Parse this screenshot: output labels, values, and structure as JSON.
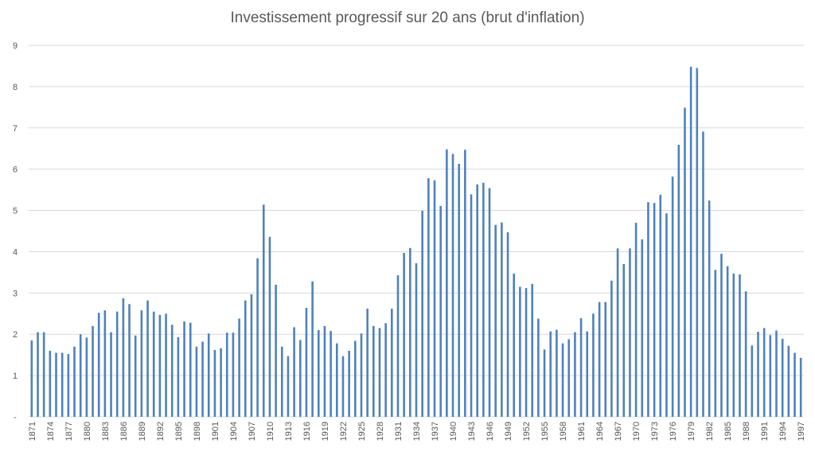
{
  "chart_data": {
    "type": "bar",
    "title": "Investissement progressif sur 20 ans (brut d'inflation)",
    "xlabel": "",
    "ylabel": "",
    "ylim": [
      0,
      9
    ],
    "yticks": [
      "-",
      "1",
      "2",
      "3",
      "4",
      "5",
      "6",
      "7",
      "8",
      "9"
    ],
    "grid": true,
    "legend": "none",
    "bar_color": "#4F81BD",
    "x_start": 1871,
    "x_end": 1997,
    "x_label_step": 3,
    "x_tick_labels": [
      "1871",
      "1874",
      "1877",
      "1880",
      "1883",
      "1886",
      "1889",
      "1892",
      "1895",
      "1898",
      "1901",
      "1904",
      "1907",
      "1910",
      "1913",
      "1916",
      "1919",
      "1922",
      "1925",
      "1928",
      "1931",
      "1934",
      "1937",
      "1940",
      "1943",
      "1946",
      "1949",
      "1952",
      "1955",
      "1958",
      "1961",
      "1964",
      "1967",
      "1970",
      "1973",
      "1976",
      "1979",
      "1982",
      "1985",
      "1988",
      "1991",
      "1994",
      "1997"
    ],
    "values": [
      1.85,
      2.05,
      2.05,
      1.6,
      1.55,
      1.55,
      1.52,
      1.7,
      2.0,
      1.92,
      2.2,
      2.52,
      2.58,
      2.05,
      2.55,
      2.87,
      2.73,
      1.97,
      2.58,
      2.82,
      2.55,
      2.47,
      2.5,
      2.23,
      1.93,
      2.31,
      2.28,
      1.7,
      1.82,
      2.02,
      1.62,
      1.66,
      2.04,
      2.04,
      2.38,
      2.82,
      2.97,
      3.84,
      5.14,
      4.36,
      3.2,
      1.7,
      1.47,
      2.17,
      1.86,
      2.64,
      3.28,
      2.1,
      2.2,
      2.08,
      1.78,
      1.47,
      1.6,
      1.84,
      2.02,
      2.62,
      2.2,
      2.15,
      2.27,
      2.62,
      3.43,
      3.97,
      4.09,
      3.72,
      4.99,
      5.78,
      5.73,
      5.11,
      6.48,
      6.37,
      6.13,
      6.47,
      5.39,
      5.63,
      5.67,
      5.54,
      4.65,
      4.71,
      4.47,
      3.47,
      3.15,
      3.12,
      3.22,
      2.38,
      1.63,
      2.07,
      2.11,
      1.78,
      1.88,
      2.05,
      2.39,
      2.07,
      2.5,
      2.78,
      2.78,
      3.3,
      4.08,
      3.7,
      4.08,
      4.7,
      4.3,
      5.2,
      5.18,
      5.38,
      4.93,
      5.82,
      6.59,
      7.49,
      8.48,
      8.45,
      6.91,
      5.24,
      3.56,
      3.95,
      3.65,
      3.47,
      3.45,
      3.04,
      1.73,
      2.06,
      2.15,
      1.98,
      2.09,
      1.89,
      1.72,
      1.55,
      1.43
    ]
  }
}
